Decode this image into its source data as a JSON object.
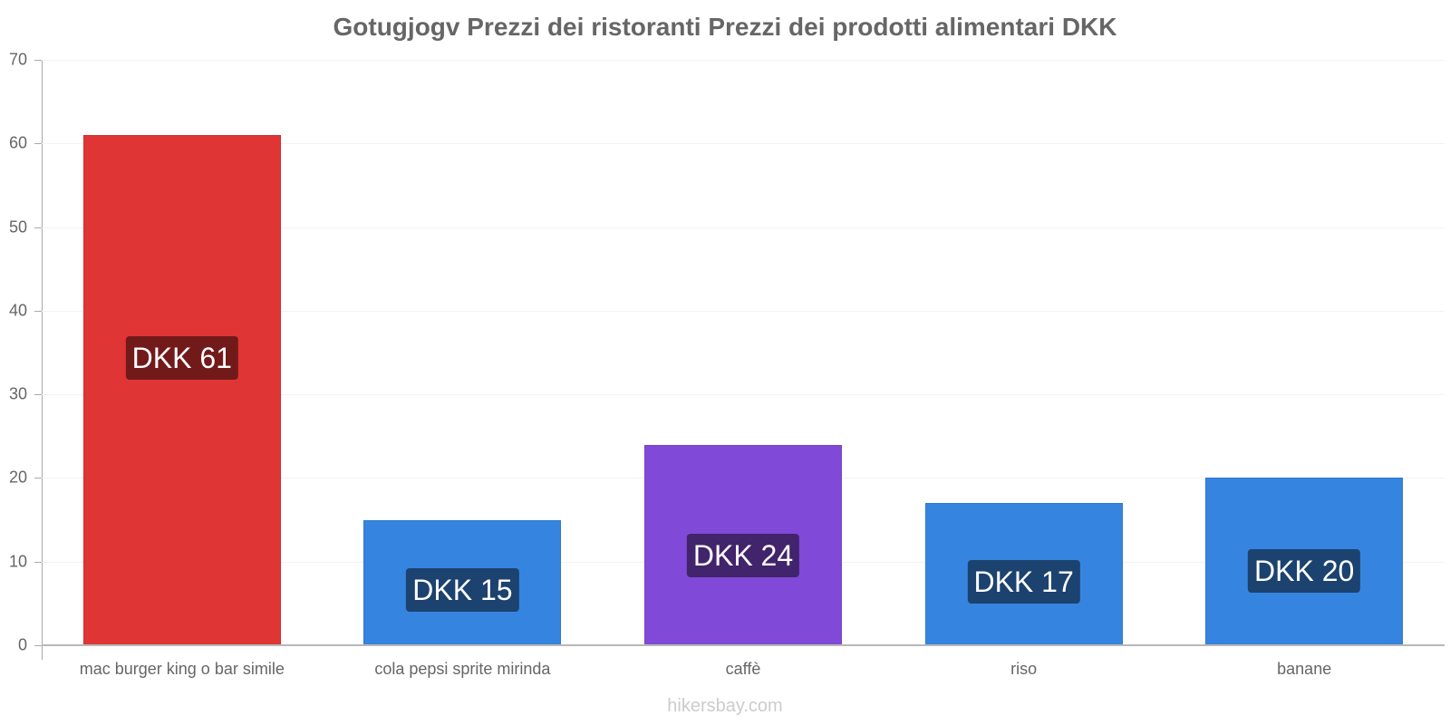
{
  "chart_data": {
    "type": "bar",
    "title": "Gotugjogv Prezzi dei ristoranti Prezzi dei prodotti alimentari DKK",
    "xlabel": "",
    "ylabel": "",
    "ylim": [
      0,
      70
    ],
    "yticks": [
      0,
      10,
      20,
      30,
      40,
      50,
      60,
      70
    ],
    "grid": true,
    "legend": null,
    "categories": [
      "mac burger king o bar simile",
      "cola pepsi sprite mirinda",
      "caffè",
      "riso",
      "banane"
    ],
    "values": [
      61,
      15,
      24,
      17,
      20
    ],
    "data_labels": [
      "DKK 61",
      "DKK 15",
      "DKK 24",
      "DKK 17",
      "DKK 20"
    ],
    "bar_colors": [
      "#e03535",
      "#3584e0",
      "#8149d8",
      "#3584e0",
      "#3584e0"
    ],
    "label_bg_colors": [
      "#721a1a",
      "#1c426f",
      "#41246c",
      "#1c426f",
      "#1c426f"
    ]
  },
  "watermark": "hikersbay.com"
}
